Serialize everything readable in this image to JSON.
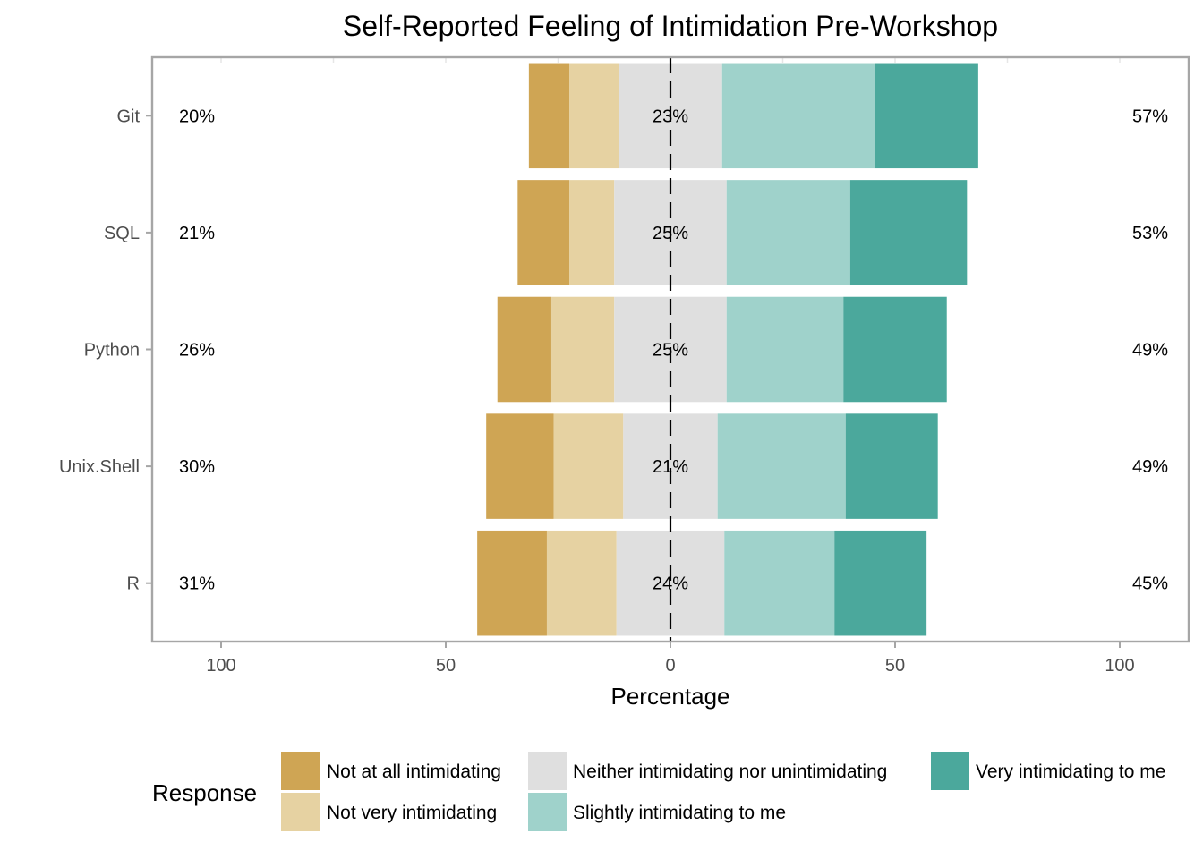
{
  "chart_data": {
    "type": "bar",
    "subtype": "diverging-stacked-likert",
    "title": "Self-Reported Feeling of Intimidation Pre-Workshop",
    "xlabel": "Percentage",
    "ylabel": "",
    "xlim": [
      -100,
      100
    ],
    "x_ticks": [
      -100,
      -50,
      0,
      50,
      100
    ],
    "x_tick_labels": [
      "100",
      "50",
      "0",
      "50",
      "100"
    ],
    "categories": [
      "Git",
      "SQL",
      "Python",
      "Unix.Shell",
      "R"
    ],
    "legend_title": "Response",
    "legend_position": "bottom",
    "series": [
      {
        "name": "Not at all intimidating",
        "color": "#CFA554",
        "values": [
          9,
          11.5,
          12,
          15,
          15.5
        ]
      },
      {
        "name": "Not very intimidating",
        "color": "#E6D2A2",
        "values": [
          11,
          10,
          14,
          15.5,
          15.5
        ]
      },
      {
        "name": "Neither intimidating nor unintimidating",
        "color": "#DFDFDF",
        "values": [
          23,
          25,
          25,
          21,
          24
        ]
      },
      {
        "name": "Slightly intimidating to me",
        "color": "#9FD2CB",
        "values": [
          34,
          27.5,
          26,
          28.5,
          24.5
        ]
      },
      {
        "name": "Very intimidating to me",
        "color": "#4BA89C",
        "values": [
          23,
          26,
          23,
          20.5,
          20.5
        ]
      }
    ],
    "left_labels": [
      "20%",
      "21%",
      "26%",
      "30%",
      "31%"
    ],
    "center_labels": [
      "23%",
      "25%",
      "25%",
      "21%",
      "24%"
    ],
    "right_labels": [
      "57%",
      "53%",
      "49%",
      "49%",
      "45%"
    ],
    "legend_order": [
      "Not at all intimidating",
      "Not very intimidating",
      "Neither intimidating nor unintimidating",
      "Slightly intimidating to me",
      "Very intimidating to me"
    ]
  }
}
